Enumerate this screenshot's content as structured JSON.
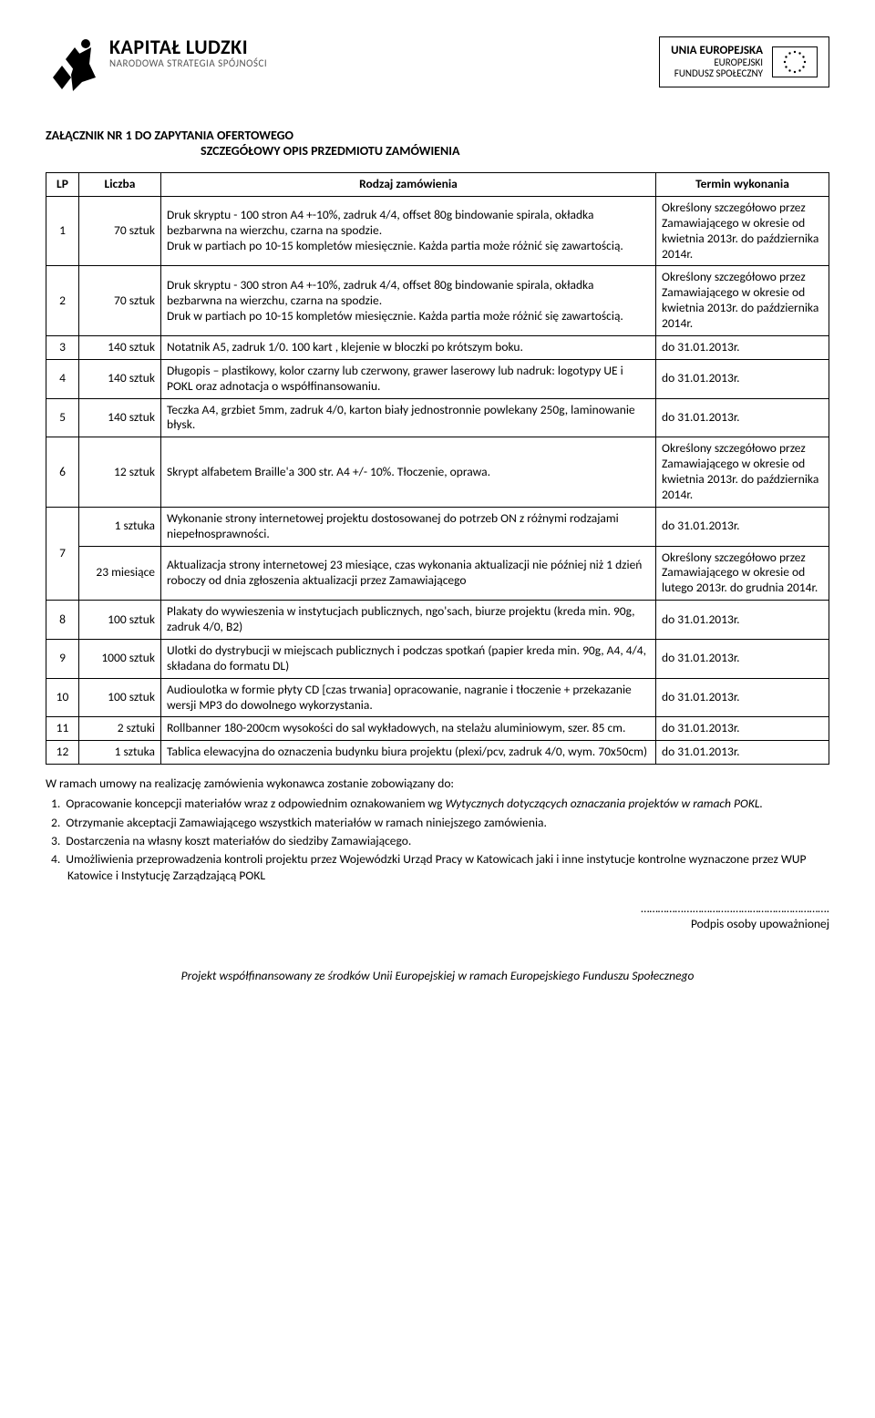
{
  "logos": {
    "left": {
      "main": "KAPITAŁ LUDZKI",
      "sub": "NARODOWA STRATEGIA SPÓJNOŚCI"
    },
    "right": {
      "main": "UNIA EUROPEJSKA",
      "sub": "EUROPEJSKI",
      "sub2": "FUNDUSZ SPOŁECZNY"
    }
  },
  "title": {
    "line1": "ZAŁĄCZNIK NR 1 DO ZAPYTANIA OFERTOWEGO",
    "line2": "SZCZEGÓŁOWY OPIS PRZEDMIOTU ZAMÓWIENIA"
  },
  "table": {
    "headers": {
      "lp": "LP",
      "qty": "Liczba",
      "desc": "Rodzaj zamówienia",
      "term": "Termin wykonania"
    },
    "rows": [
      {
        "lp": "1",
        "qty": "70 sztuk",
        "desc": "Druk skryptu - 100 stron A4 +-10%, zadruk 4/4, offset 80g bindowanie spirala, okładka bezbarwna na wierzchu, czarna na spodzie.\nDruk w partiach po 10-15 kompletów miesięcznie. Każda partia może różnić się zawartością.",
        "term": "Określony szczegółowo przez Zamawiającego w okresie od kwietnia 2013r. do października 2014r."
      },
      {
        "lp": "2",
        "qty": "70 sztuk",
        "desc": "Druk skryptu - 300 stron A4 +-10%, zadruk 4/4, offset 80g bindowanie spirala, okładka bezbarwna na wierzchu, czarna na spodzie.\nDruk w partiach po 10-15 kompletów miesięcznie. Każda partia może różnić się zawartością.",
        "term": "Określony szczegółowo przez Zamawiającego w okresie od kwietnia 2013r. do października 2014r."
      },
      {
        "lp": "3",
        "qty": "140 sztuk",
        "desc": "Notatnik A5, zadruk 1/0. 100 kart , klejenie w bloczki po krótszym boku.",
        "term": "do 31.01.2013r."
      },
      {
        "lp": "4",
        "qty": "140 sztuk",
        "desc": "Długopis – plastikowy, kolor czarny lub czerwony, grawer laserowy lub nadruk: logotypy UE i POKL oraz adnotacja o współfinansowaniu.",
        "term": "do 31.01.2013r."
      },
      {
        "lp": "5",
        "qty": "140 sztuk",
        "desc": "Teczka A4, grzbiet 5mm, zadruk 4/0, karton biały jednostronnie powlekany 250g, laminowanie błysk.",
        "term": "do 31.01.2013r."
      },
      {
        "lp": "6",
        "qty": "12 sztuk",
        "desc": "Skrypt alfabetem Braille'a 300 str. A4 +/- 10%. Tłoczenie, oprawa.",
        "term": "Określony szczegółowo przez Zamawiającego w okresie od kwietnia 2013r. do października 2014r."
      },
      {
        "lp": "7",
        "qty_a": "1 sztuka",
        "desc_a": "Wykonanie strony internetowej projektu dostosowanej do potrzeb ON z różnymi rodzajami niepełnosprawności.",
        "term_a": "do 31.01.2013r.",
        "qty_b": "23 miesiące",
        "desc_b": "Aktualizacja strony internetowej 23 miesiące, czas wykonania aktualizacji nie później niż 1 dzień roboczy od dnia zgłoszenia aktualizacji przez Zamawiającego",
        "term_b": "Określony szczegółowo przez  Zamawiającego  w okresie  od  lutego  2013r. do grudnia 2014r."
      },
      {
        "lp": "8",
        "qty": "100 sztuk",
        "desc": "Plakaty do wywieszenia w instytucjach publicznych, ngo'sach, biurze projektu (kreda  min. 90g, zadruk 4/0, B2)",
        "term": "do 31.01.2013r."
      },
      {
        "lp": "9",
        "qty": "1000 sztuk",
        "desc": "Ulotki do dystrybucji w miejscach publicznych i podczas spotkań  (papier kreda min. 90g, A4, 4/4, składana do formatu DL)",
        "term": "do 31.01.2013r."
      },
      {
        "lp": "10",
        "qty": "100 sztuk",
        "desc": "Audioulotka w formie płyty CD [czas trwania] opracowanie, nagranie i tłoczenie + przekazanie wersji MP3 do dowolnego wykorzystania.",
        "term": "do 31.01.2013r."
      },
      {
        "lp": "11",
        "qty": "2 sztuki",
        "desc": "Rollbanner 180-200cm wysokości do sal wykładowych, na stelażu aluminiowym, szer. 85 cm.",
        "term": "do 31.01.2013r."
      },
      {
        "lp": "12",
        "qty": "1 sztuka",
        "desc": "Tablica elewacyjna do oznaczenia budynku biura projektu (plexi/pcv, zadruk 4/0, wym. 70x50cm)",
        "term": "do 31.01.2013r."
      }
    ]
  },
  "post": {
    "intro": "W ramach umowy na realizację zamówienia wykonawca zostanie zobowiązany do:",
    "items": [
      {
        "n": "1.",
        "text": "Opracowanie koncepcji materiałów wraz z odpowiednim oznakowaniem wg ",
        "italic": "Wytycznych dotyczących oznaczania projektów w ramach POKL."
      },
      {
        "n": "2.",
        "text": "Otrzymanie akceptacji Zamawiającego wszystkich materiałów w ramach niniejszego zamówienia."
      },
      {
        "n": "3.",
        "text": "Dostarczenia na własny koszt materiałów do siedziby Zamawiającego."
      },
      {
        "n": "4.",
        "text": "Umożliwienia przeprowadzenia kontroli projektu przez Wojewódzki Urząd Pracy w Katowicach jaki i inne instytucje kontrolne wyznaczone przez WUP Katowice i Instytucję Zarządzającą POKL"
      }
    ],
    "sig_dots": "……………...…………..…………………………….",
    "sig_label": "Podpis osoby upoważnionej"
  },
  "footer": "Projekt współfinansowany ze środków Unii Europejskiej w ramach Europejskiego Funduszu Społecznego",
  "colors": {
    "text": "#000000",
    "bg": "#ffffff",
    "border": "#000000"
  }
}
